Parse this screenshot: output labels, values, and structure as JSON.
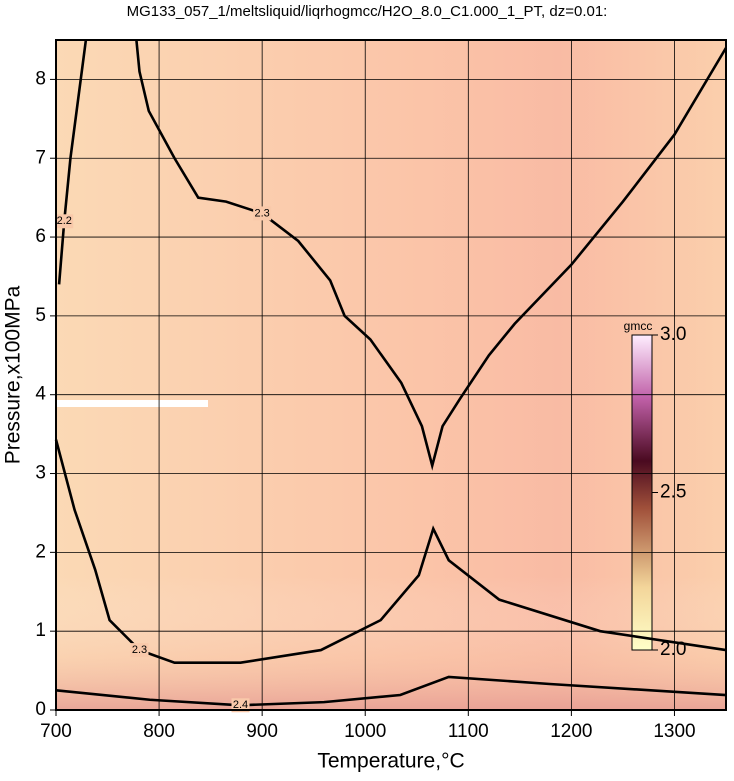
{
  "chart_data": {
    "type": "contour",
    "title": "MG133_057_1/meltsliquid/liqrhogmcc/H2O_8.0_C1.000_1_PT, dz=0.01:",
    "x_label": "Temperature,°C",
    "y_label": "Pressure,x100MPa",
    "xlim": [
      700,
      1350
    ],
    "ylim": [
      0,
      8.5
    ],
    "xticks": [
      700,
      800,
      900,
      1000,
      1100,
      1200,
      1300
    ],
    "yticks": [
      0,
      1,
      2,
      3,
      4,
      5,
      6,
      7,
      8
    ],
    "grid": true,
    "colorbar": {
      "label": "gmcc",
      "lim": [
        2,
        3
      ],
      "ticks": [
        {
          "value": 2,
          "label": "2.0"
        },
        {
          "value": 2.5,
          "label": "2.5"
        },
        {
          "value": 3,
          "label": "3.0"
        }
      ]
    },
    "contours": [
      {
        "level": 2.3,
        "x": [
          778,
          781,
          790,
          815,
          838,
          865,
          900,
          935,
          966,
          980,
          1005,
          1035,
          1055,
          1065,
          1075,
          1092,
          1120,
          1145,
          1200,
          1250,
          1300,
          1350
        ],
        "y": [
          8.5,
          8.1,
          7.6,
          7.0,
          6.5,
          6.45,
          6.3,
          5.95,
          5.45,
          5.0,
          4.7,
          4.15,
          3.6,
          3.1,
          3.6,
          3.95,
          4.5,
          4.9,
          5.65,
          6.45,
          7.3,
          8.4
        ]
      },
      {
        "level": 2.3,
        "x": [
          700,
          718,
          738,
          752,
          781,
          815,
          879,
          957,
          1015,
          1052,
          1066,
          1081,
          1130,
          1228,
          1350
        ],
        "y": [
          3.43,
          2.54,
          1.78,
          1.14,
          0.76,
          0.6,
          0.6,
          0.76,
          1.14,
          1.71,
          2.3,
          1.9,
          1.4,
          1.0,
          0.76
        ]
      },
      {
        "level": 2.4,
        "x": [
          700,
          791,
          879,
          960,
          1034,
          1081,
          1179,
          1350
        ],
        "y": [
          0.25,
          0.13,
          0.06,
          0.1,
          0.19,
          0.42,
          0.33,
          0.19
        ]
      },
      {
        "level": 2.2,
        "x": [
          703,
          708,
          714,
          720,
          726,
          729
        ],
        "y": [
          5.4,
          6.2,
          7.0,
          7.6,
          8.2,
          8.5
        ]
      }
    ]
  }
}
